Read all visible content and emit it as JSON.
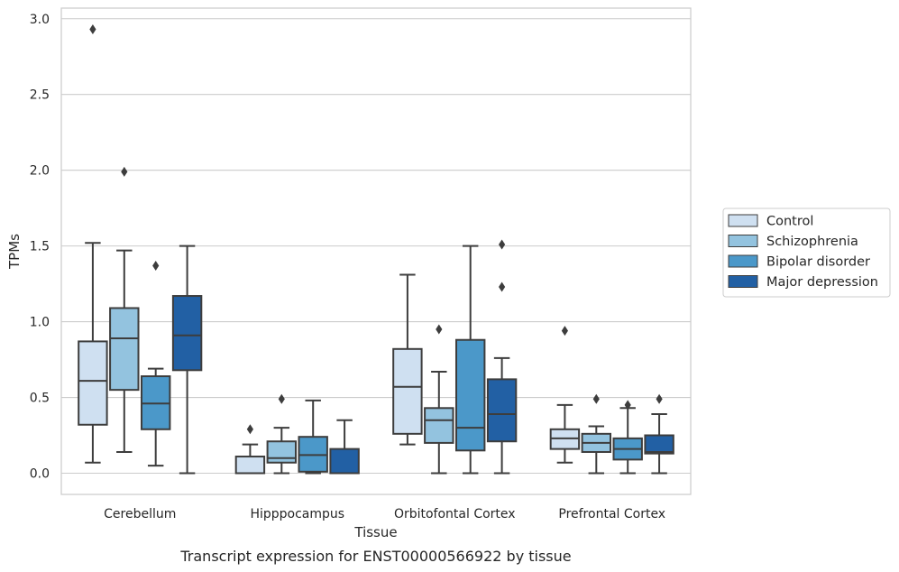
{
  "chart_data": {
    "type": "boxplot",
    "title": "",
    "caption": "Transcript expression for ENST00000566922 by tissue",
    "xlabel": "Tissue",
    "ylabel": "TPMs",
    "ylim": [
      -0.14,
      3.07
    ],
    "yticks": [
      "0.0",
      "0.5",
      "1.0",
      "1.5",
      "2.0",
      "2.5",
      "3.0"
    ],
    "grid": "horizontal",
    "legend_position": "right",
    "categories": [
      "Cerebellum",
      "Hipppocampus",
      "Orbitofontal Cortex",
      "Prefrontal Cortex"
    ],
    "series": [
      {
        "name": "Control",
        "color": "#cfe0f1",
        "boxes": [
          {
            "whislo": 0.07,
            "q1": 0.32,
            "med": 0.61,
            "q3": 0.87,
            "whishi": 1.52,
            "fliers": [
              2.93
            ]
          },
          {
            "whislo": 0.0,
            "q1": 0.0,
            "med": 0.0,
            "q3": 0.11,
            "whishi": 0.19,
            "fliers": [
              0.29
            ]
          },
          {
            "whislo": 0.19,
            "q1": 0.26,
            "med": 0.57,
            "q3": 0.82,
            "whishi": 1.31,
            "fliers": []
          },
          {
            "whislo": 0.07,
            "q1": 0.16,
            "med": 0.23,
            "q3": 0.29,
            "whishi": 0.45,
            "fliers": [
              0.94
            ]
          }
        ]
      },
      {
        "name": "Schizophrenia",
        "color": "#93c3df",
        "boxes": [
          {
            "whislo": 0.14,
            "q1": 0.55,
            "med": 0.89,
            "q3": 1.09,
            "whishi": 1.47,
            "fliers": [
              1.99
            ]
          },
          {
            "whislo": 0.0,
            "q1": 0.07,
            "med": 0.1,
            "q3": 0.21,
            "whishi": 0.3,
            "fliers": [
              0.49
            ]
          },
          {
            "whislo": 0.0,
            "q1": 0.2,
            "med": 0.35,
            "q3": 0.43,
            "whishi": 0.67,
            "fliers": [
              0.95
            ]
          },
          {
            "whislo": 0.0,
            "q1": 0.14,
            "med": 0.2,
            "q3": 0.26,
            "whishi": 0.31,
            "fliers": [
              0.49
            ]
          }
        ]
      },
      {
        "name": "Bipolar disorder",
        "color": "#4b98c9",
        "boxes": [
          {
            "whislo": 0.05,
            "q1": 0.29,
            "med": 0.46,
            "q3": 0.64,
            "whishi": 0.69,
            "fliers": [
              1.37
            ]
          },
          {
            "whislo": 0.0,
            "q1": 0.01,
            "med": 0.12,
            "q3": 0.24,
            "whishi": 0.48,
            "fliers": []
          },
          {
            "whislo": 0.0,
            "q1": 0.15,
            "med": 0.3,
            "q3": 0.88,
            "whishi": 1.5,
            "fliers": []
          },
          {
            "whislo": 0.0,
            "q1": 0.09,
            "med": 0.16,
            "q3": 0.23,
            "whishi": 0.43,
            "fliers": [
              0.45
            ]
          }
        ]
      },
      {
        "name": "Major depression",
        "color": "#2260a4",
        "boxes": [
          {
            "whislo": 0.0,
            "q1": 0.68,
            "med": 0.91,
            "q3": 1.17,
            "whishi": 1.5,
            "fliers": []
          },
          {
            "whislo": 0.0,
            "q1": 0.0,
            "med": 0.0,
            "q3": 0.16,
            "whishi": 0.35,
            "fliers": []
          },
          {
            "whislo": 0.0,
            "q1": 0.21,
            "med": 0.39,
            "q3": 0.62,
            "whishi": 0.76,
            "fliers": [
              1.23,
              1.51
            ]
          },
          {
            "whislo": 0.0,
            "q1": 0.13,
            "med": 0.14,
            "q3": 0.25,
            "whishi": 0.39,
            "fliers": [
              0.49
            ]
          }
        ]
      }
    ]
  }
}
